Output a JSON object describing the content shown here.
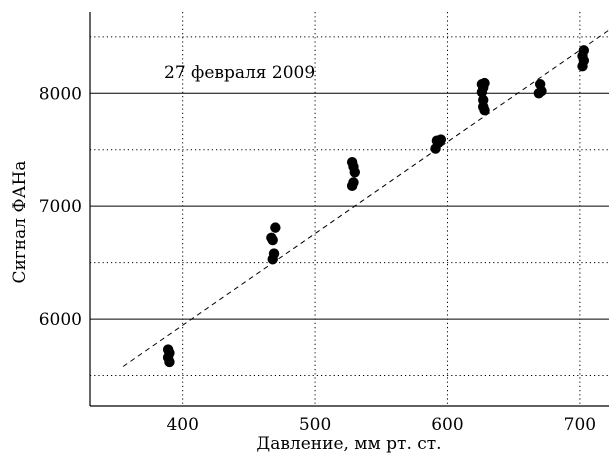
{
  "chart_data": {
    "type": "scatter",
    "annotation": "27 февраля 2009",
    "xlabel": "Давление, мм рт. ст.",
    "ylabel": "Сигнал ФАНа",
    "xlim": [
      330,
      722
    ],
    "ylim": [
      5230,
      8720
    ],
    "x_ticks": [
      400,
      500,
      600,
      700
    ],
    "y_ticks": [
      6000,
      7000,
      8000
    ],
    "major_y_grid": [
      6000,
      7000,
      8000
    ],
    "minor_y_grid": [
      5500,
      6500,
      7500,
      8500
    ],
    "x_grid": [
      400,
      500,
      600,
      700
    ],
    "grid": true,
    "trend_line": {
      "x": [
        355,
        722
      ],
      "y": [
        5580,
        8560
      ],
      "style": "dashed"
    },
    "points": [
      {
        "x": 389,
        "y": 5730
      },
      {
        "x": 390,
        "y": 5700
      },
      {
        "x": 389,
        "y": 5660
      },
      {
        "x": 390,
        "y": 5620
      },
      {
        "x": 467,
        "y": 6720
      },
      {
        "x": 468,
        "y": 6700
      },
      {
        "x": 470,
        "y": 6810
      },
      {
        "x": 469,
        "y": 6580
      },
      {
        "x": 468,
        "y": 6530
      },
      {
        "x": 528,
        "y": 7390
      },
      {
        "x": 529,
        "y": 7350
      },
      {
        "x": 530,
        "y": 7300
      },
      {
        "x": 529,
        "y": 7210
      },
      {
        "x": 528,
        "y": 7180
      },
      {
        "x": 592,
        "y": 7580
      },
      {
        "x": 595,
        "y": 7590
      },
      {
        "x": 593,
        "y": 7560
      },
      {
        "x": 591,
        "y": 7510
      },
      {
        "x": 626,
        "y": 8080
      },
      {
        "x": 628,
        "y": 8090
      },
      {
        "x": 627,
        "y": 8050
      },
      {
        "x": 626,
        "y": 8010
      },
      {
        "x": 627,
        "y": 7940
      },
      {
        "x": 627,
        "y": 7880
      },
      {
        "x": 628,
        "y": 7850
      },
      {
        "x": 670,
        "y": 8080
      },
      {
        "x": 671,
        "y": 8020
      },
      {
        "x": 669,
        "y": 8000
      },
      {
        "x": 703,
        "y": 8380
      },
      {
        "x": 702,
        "y": 8330
      },
      {
        "x": 703,
        "y": 8290
      },
      {
        "x": 702,
        "y": 8240
      }
    ],
    "colors": {
      "points": "#000000",
      "trend": "#000000",
      "grid": "#000000"
    }
  }
}
